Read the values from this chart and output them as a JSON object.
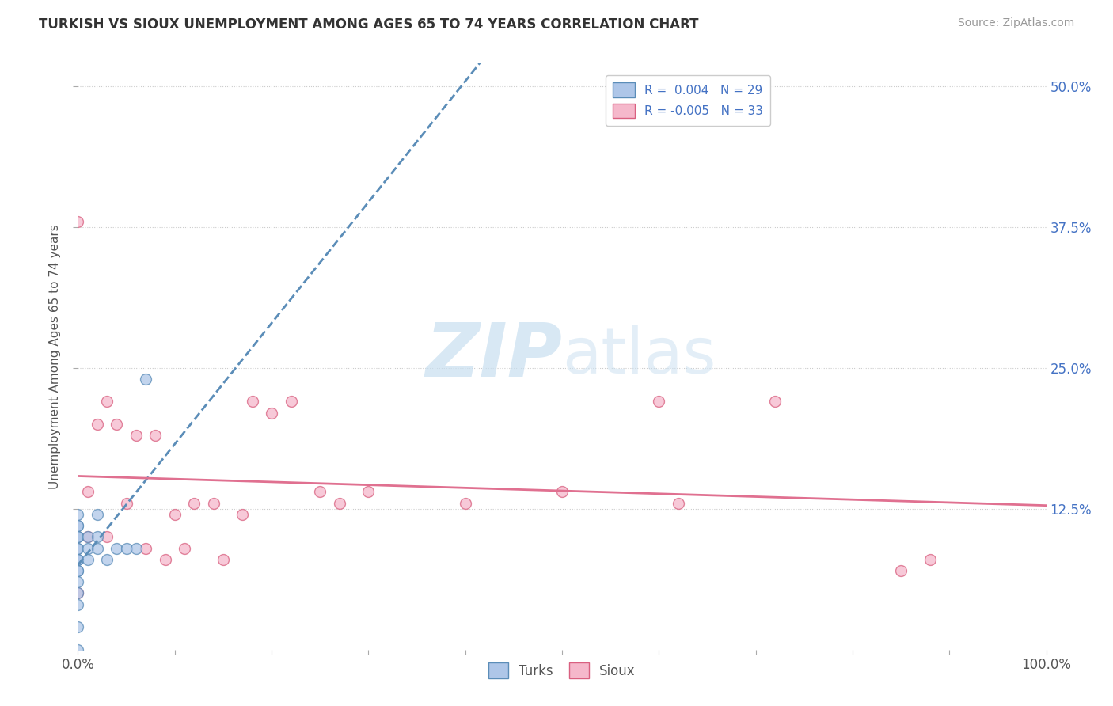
{
  "title": "TURKISH VS SIOUX UNEMPLOYMENT AMONG AGES 65 TO 74 YEARS CORRELATION CHART",
  "source": "Source: ZipAtlas.com",
  "ylabel": "Unemployment Among Ages 65 to 74 years",
  "xlim": [
    0.0,
    1.0
  ],
  "ylim": [
    0.0,
    0.52
  ],
  "xtick_positions": [
    0.0,
    0.1,
    0.2,
    0.3,
    0.4,
    0.5,
    0.6,
    0.7,
    0.8,
    0.9,
    1.0
  ],
  "xtick_labels_visible": {
    "0.0": "0.0%",
    "1.0": "100.0%"
  },
  "ytick_positions": [
    0.125,
    0.25,
    0.375,
    0.5
  ],
  "ytick_labels": [
    "12.5%",
    "25.0%",
    "37.5%",
    "50.0%"
  ],
  "turks_fill_color": "#aec6e8",
  "turks_edge_color": "#5b8db8",
  "sioux_fill_color": "#f5b8cb",
  "sioux_edge_color": "#d96080",
  "turks_line_color": "#5b8db8",
  "sioux_line_color": "#e07090",
  "turks_R": 0.004,
  "turks_N": 29,
  "sioux_R": -0.005,
  "sioux_N": 33,
  "turks_x": [
    0.0,
    0.0,
    0.0,
    0.0,
    0.0,
    0.0,
    0.0,
    0.0,
    0.0,
    0.0,
    0.0,
    0.0,
    0.0,
    0.0,
    0.0,
    0.0,
    0.0,
    0.0,
    0.01,
    0.01,
    0.01,
    0.02,
    0.02,
    0.02,
    0.03,
    0.04,
    0.05,
    0.06,
    0.07
  ],
  "turks_y": [
    0.0,
    0.02,
    0.04,
    0.05,
    0.06,
    0.07,
    0.07,
    0.08,
    0.08,
    0.08,
    0.09,
    0.09,
    0.1,
    0.1,
    0.1,
    0.11,
    0.11,
    0.12,
    0.08,
    0.09,
    0.1,
    0.09,
    0.1,
    0.12,
    0.08,
    0.09,
    0.09,
    0.09,
    0.24
  ],
  "sioux_x": [
    0.0,
    0.0,
    0.0,
    0.01,
    0.01,
    0.02,
    0.03,
    0.03,
    0.04,
    0.05,
    0.06,
    0.07,
    0.08,
    0.09,
    0.1,
    0.11,
    0.12,
    0.14,
    0.15,
    0.17,
    0.18,
    0.2,
    0.22,
    0.25,
    0.27,
    0.3,
    0.4,
    0.5,
    0.6,
    0.62,
    0.72,
    0.85,
    0.88
  ],
  "sioux_y": [
    0.05,
    0.1,
    0.38,
    0.1,
    0.14,
    0.2,
    0.1,
    0.22,
    0.2,
    0.13,
    0.19,
    0.09,
    0.19,
    0.08,
    0.12,
    0.09,
    0.13,
    0.13,
    0.08,
    0.12,
    0.22,
    0.21,
    0.22,
    0.14,
    0.13,
    0.14,
    0.13,
    0.14,
    0.22,
    0.13,
    0.22,
    0.07,
    0.08
  ],
  "marker_size": 100,
  "marker_alpha": 0.75,
  "watermark_color": "#c8dff0",
  "background_color": "#ffffff",
  "grid_color": "#cccccc",
  "right_tick_color": "#4472c4",
  "title_color": "#333333",
  "source_color": "#999999",
  "legend_label_color": "#4472c4",
  "bottom_legend_color": "#555555"
}
